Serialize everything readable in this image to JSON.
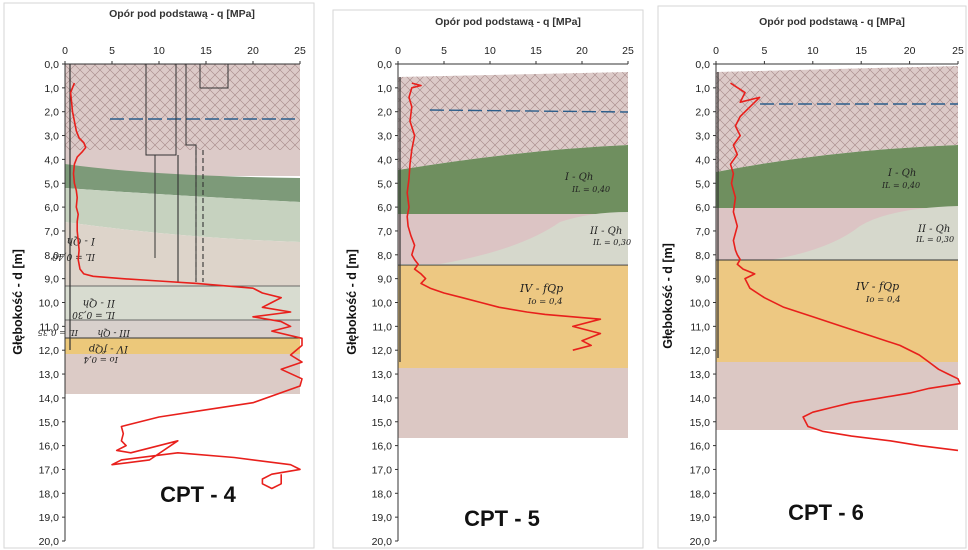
{
  "chart_data": [
    {
      "type": "line",
      "title": "Opór pod podstawą - q [MPa]",
      "ylabel": "Głębokość - d [m]",
      "caption": "CPT - 4",
      "xlim": [
        0,
        25
      ],
      "ylim": [
        0,
        20
      ],
      "xticks": [
        "0",
        "5",
        "10",
        "15",
        "20",
        "25"
      ],
      "yticks": [
        "0,0",
        "1,0",
        "2,0",
        "3,0",
        "4,0",
        "5,0",
        "6,0",
        "7,0",
        "8,0",
        "9,0",
        "10,0",
        "11,0",
        "12,0",
        "13,0",
        "14,0",
        "15,0",
        "16,0",
        "17,0",
        "18,0",
        "19,0",
        "20,0"
      ],
      "layer_labels": [
        "I - Qh",
        "IL = 0,40",
        "II - Qh",
        "IL = 0,30",
        "III - Qh",
        "IL = 0,35",
        "IV - fQp",
        "Io = 0,4"
      ],
      "series": [
        {
          "name": "q",
          "x": [
            1,
            0.6,
            0.7,
            0.8,
            1,
            1.2,
            1.5,
            2,
            2.2,
            1.8,
            1.3,
            1,
            0.9,
            1,
            1.2,
            1.3,
            1.2,
            1.4,
            1.3,
            1.3,
            1.4,
            1.5,
            1.4,
            1.6,
            2,
            3,
            6,
            10,
            14,
            17,
            20,
            21,
            23,
            22,
            21,
            24,
            20,
            23,
            24,
            22,
            26,
            26,
            24,
            26,
            23,
            26,
            25,
            20,
            15,
            10,
            6,
            6.2,
            6,
            6.5,
            5.5,
            7,
            12,
            9,
            5,
            6,
            12,
            18,
            24,
            25,
            22,
            21,
            21,
            22,
            23,
            23
          ],
          "y": [
            0.8,
            1.2,
            1.6,
            2,
            2.4,
            2.8,
            3.1,
            3.3,
            3.5,
            3.7,
            3.9,
            4.2,
            4.6,
            5,
            5.3,
            5.6,
            6,
            6.3,
            6.6,
            7,
            7.4,
            7.8,
            8.2,
            8.6,
            8.8,
            8.9,
            9,
            9.1,
            9.2,
            9.3,
            9.4,
            9.6,
            9.8,
            10,
            10.2,
            10.4,
            10.6,
            10.8,
            11,
            11.2,
            11.5,
            11.8,
            12.2,
            12.5,
            12.8,
            13.2,
            13.5,
            14.2,
            14.5,
            14.8,
            15.2,
            15.5,
            15.8,
            16,
            16.2,
            16.3,
            15.8,
            16.6,
            16.8,
            16.6,
            16.3,
            16.5,
            16.8,
            17,
            17.2,
            17.4,
            17.6,
            17.8,
            17.6,
            17.2
          ]
        }
      ]
    },
    {
      "type": "line",
      "title": "Opór pod podstawą - q [MPa]",
      "ylabel": "Głębokość - d [m]",
      "caption": "CPT - 5",
      "xlim": [
        0,
        25
      ],
      "ylim": [
        0,
        20
      ],
      "xticks": [
        "0",
        "5",
        "10",
        "15",
        "20",
        "25"
      ],
      "yticks": [
        "0,0",
        "1,0",
        "2,0",
        "3,0",
        "4,0",
        "5,0",
        "6,0",
        "7,0",
        "8,0",
        "9,0",
        "10,0",
        "11,0",
        "12,0",
        "13,0",
        "14,0",
        "15,0",
        "16,0",
        "17,0",
        "18,0",
        "19,0",
        "20,0"
      ],
      "layer_labels": [
        "I - Qh",
        "IL = 0,40",
        "II - Qh",
        "IL = 0,30",
        "IV - fQp",
        "Io = 0,4"
      ],
      "series": [
        {
          "name": "q",
          "x": [
            1.5,
            2.5,
            1.5,
            1.2,
            1.5,
            1.3,
            1.8,
            1.5,
            1.3,
            1.2,
            1,
            1.2,
            1,
            1.1,
            1.4,
            1.8,
            1.5,
            1.8,
            2,
            2.2,
            1.8,
            2.5,
            3,
            2.5,
            3.5,
            5,
            7,
            9,
            11,
            14,
            16,
            19,
            22,
            19,
            22,
            20,
            21,
            19
          ],
          "y": [
            0.8,
            0.9,
            1,
            1.4,
            1.8,
            2.4,
            3,
            3.6,
            4.2,
            4.8,
            5.4,
            6,
            6.4,
            6.8,
            7.2,
            7.6,
            8,
            8.2,
            8.3,
            8.4,
            8.6,
            8.8,
            9,
            9.2,
            9.4,
            9.6,
            9.8,
            10,
            10.2,
            10.4,
            10.5,
            10.6,
            10.7,
            11,
            11.3,
            11.6,
            11.8,
            12
          ]
        }
      ]
    },
    {
      "type": "line",
      "title": "Opór pod podstawą - q [MPa]",
      "ylabel": "Głębokość - d [m]",
      "caption": "CPT - 6",
      "xlim": [
        0,
        25
      ],
      "ylim": [
        0,
        20
      ],
      "xticks": [
        "0",
        "5",
        "10",
        "15",
        "20",
        "25"
      ],
      "yticks": [
        "0,0",
        "1,0",
        "2,0",
        "3,0",
        "4,0",
        "5,0",
        "6,0",
        "7,0",
        "8,0",
        "9,0",
        "10,0",
        "11,0",
        "12,0",
        "13,0",
        "14,0",
        "15,0",
        "16,0",
        "17,0",
        "18,0",
        "19,0",
        "20,0"
      ],
      "layer_labels": [
        "I - Qh",
        "IL = 0,40",
        "II - Qh",
        "IL = 0,30",
        "IV - fQp",
        "Io = 0,4"
      ],
      "series": [
        {
          "name": "q",
          "x": [
            1.5,
            3,
            2.5,
            4.5,
            3.5,
            2.5,
            2,
            2.5,
            1.8,
            2.2,
            1.5,
            1.8,
            1.6,
            2,
            1.8,
            2.2,
            1.8,
            2,
            2.2,
            2.5,
            2.2,
            2.8,
            4,
            3,
            3.5,
            5,
            7,
            10,
            13,
            16,
            19,
            21,
            22,
            23,
            24,
            25,
            25.5,
            22,
            20,
            17,
            14,
            12,
            10,
            9,
            9.5,
            11,
            14,
            18,
            21,
            25
          ],
          "y": [
            0.8,
            1.2,
            1.6,
            1.4,
            1.8,
            2.2,
            2.6,
            3,
            3.4,
            3.8,
            4.2,
            4.6,
            5,
            5.6,
            6.2,
            6.8,
            7.4,
            7.8,
            8,
            8.2,
            8.4,
            8.6,
            8.8,
            9,
            9.4,
            9.8,
            10.2,
            10.6,
            11,
            11.4,
            11.8,
            12.2,
            12.5,
            12.8,
            13,
            13.2,
            13.4,
            13.6,
            13.8,
            14,
            14.2,
            14.4,
            14.6,
            14.8,
            15.2,
            15.4,
            15.6,
            15.8,
            16,
            16.2
          ]
        }
      ]
    }
  ]
}
